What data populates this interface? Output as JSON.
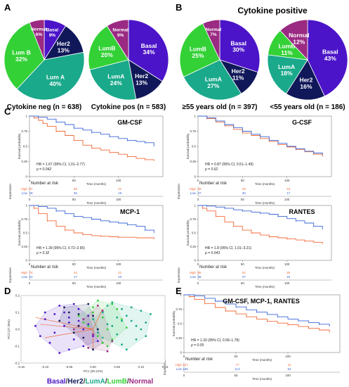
{
  "colors": {
    "basal": "#4b14c8",
    "her2": "#101859",
    "luma": "#1aa98b",
    "lumb": "#33d136",
    "normal": "#9a2a82",
    "km_high": "#f26b3a",
    "km_low": "#3a66d6"
  },
  "panels": {
    "a": "A",
    "b": "B",
    "c": "C",
    "d": "D",
    "e": "E"
  },
  "section_b_title": "Cytokine positive",
  "chart_data": [
    {
      "type": "pie",
      "id": "pie-cytokine-neg",
      "caption": "Cytokine neg (n = 638)",
      "slices": [
        {
          "key": "basal",
          "label": "Basal",
          "value": 9
        },
        {
          "key": "her2",
          "label": "Her2",
          "value": 13
        },
        {
          "key": "luma",
          "label": "Lum A",
          "value": 40
        },
        {
          "key": "lumb",
          "label": "Lum B",
          "value": 32
        },
        {
          "key": "normal",
          "label": "Normal",
          "value": 6
        }
      ]
    },
    {
      "type": "pie",
      "id": "pie-cytokine-pos",
      "caption": "Cytokine pos (n = 583)",
      "slices": [
        {
          "key": "basal",
          "label": "Basal",
          "value": 34
        },
        {
          "key": "her2",
          "label": "Her2",
          "value": 13
        },
        {
          "key": "luma",
          "label": "LumA",
          "value": 24
        },
        {
          "key": "lumb",
          "label": "LumB",
          "value": 20
        },
        {
          "key": "normal",
          "label": "Normal",
          "value": 9
        }
      ]
    },
    {
      "type": "pie",
      "id": "pie-age-55plus",
      "caption": "≥55 years old (n = 397)",
      "slices": [
        {
          "key": "basal",
          "label": "Basal",
          "value": 30
        },
        {
          "key": "her2",
          "label": "Her2",
          "value": 11
        },
        {
          "key": "luma",
          "label": "LumA",
          "value": 27
        },
        {
          "key": "lumb",
          "label": "LumB",
          "value": 25
        },
        {
          "key": "normal",
          "label": "Normal",
          "value": 7
        }
      ]
    },
    {
      "type": "pie",
      "id": "pie-age-under55",
      "caption": "<55 years old (n = 186)",
      "slices": [
        {
          "key": "basal",
          "label": "Basal",
          "value": 43
        },
        {
          "key": "her2",
          "label": "Her2",
          "value": 16
        },
        {
          "key": "luma",
          "label": "LumA",
          "value": 18
        },
        {
          "key": "lumb",
          "label": "LumB",
          "value": 11
        },
        {
          "key": "normal",
          "label": "Normal",
          "value": 12
        }
      ]
    },
    {
      "type": "line",
      "id": "km-gmcsf",
      "title": "GM-CSF",
      "ylabel": "Survival probability",
      "xlabel": "Time (months)",
      "xlim": [
        0,
        150
      ],
      "ylim": [
        0,
        1
      ],
      "xticks": [
        0,
        50,
        100
      ],
      "yticks": [
        0,
        0.25,
        0.5,
        0.75,
        1
      ],
      "hr_text": "HR = 1.67 (95% CI, 1.01–2.77)",
      "p_text": "p = 0.042",
      "risk_title": "Number at risk",
      "risk_axis_label": "Expression",
      "risk": {
        "High": [
          "87",
          "56",
          "21"
        ],
        "Low": [
          "49",
          "36",
          "19"
        ]
      },
      "series": [
        {
          "name": "High",
          "x": [
            0,
            5,
            10,
            15,
            20,
            30,
            40,
            50,
            60,
            70,
            80,
            90,
            100,
            110,
            120,
            130,
            140
          ],
          "y": [
            1,
            0.97,
            0.93,
            0.88,
            0.83,
            0.75,
            0.68,
            0.6,
            0.52,
            0.47,
            0.44,
            0.4,
            0.37,
            0.33,
            0.3,
            0.28,
            0.26
          ]
        },
        {
          "name": "Low",
          "x": [
            0,
            10,
            20,
            30,
            40,
            50,
            60,
            70,
            80,
            90,
            100,
            110,
            120,
            130,
            140
          ],
          "y": [
            1,
            0.98,
            0.95,
            0.9,
            0.86,
            0.8,
            0.77,
            0.73,
            0.7,
            0.66,
            0.63,
            0.6,
            0.58,
            0.56,
            0.5
          ]
        }
      ]
    },
    {
      "type": "line",
      "id": "km-gcsf",
      "title": "G-CSF",
      "ylabel": "Survival probability",
      "xlabel": "Time (months)",
      "xlim": [
        0,
        150
      ],
      "ylim": [
        0,
        1
      ],
      "xticks": [
        0,
        50,
        100
      ],
      "yticks": [
        0,
        0.25,
        0.5,
        0.75,
        1
      ],
      "hr_text": "HR = 0.87 (95% CI, 0.51–1.49)",
      "p_text": "p = 0.62",
      "risk_title": "Number at risk",
      "risk_axis_label": "Expression",
      "risk": {
        "High": [
          "46",
          "32",
          "15"
        ],
        "Low": [
          "47",
          "30",
          "17"
        ]
      },
      "series": [
        {
          "name": "High",
          "x": [
            0,
            10,
            20,
            30,
            40,
            50,
            60,
            70,
            80,
            90,
            100,
            110,
            120,
            130,
            140
          ],
          "y": [
            1,
            0.96,
            0.9,
            0.84,
            0.78,
            0.72,
            0.68,
            0.63,
            0.58,
            0.53,
            0.49,
            0.45,
            0.41,
            0.37,
            0.33
          ]
        },
        {
          "name": "Low",
          "x": [
            0,
            10,
            20,
            30,
            40,
            50,
            60,
            70,
            80,
            90,
            100,
            110,
            120,
            130,
            140
          ],
          "y": [
            1,
            0.97,
            0.92,
            0.86,
            0.81,
            0.75,
            0.7,
            0.66,
            0.6,
            0.55,
            0.5,
            0.46,
            0.42,
            0.39,
            0.36
          ]
        }
      ]
    },
    {
      "type": "line",
      "id": "km-mcp1",
      "title": "MCP-1",
      "ylabel": "Survival probability",
      "xlabel": "Time (months)",
      "xlim": [
        0,
        150
      ],
      "ylim": [
        0,
        1
      ],
      "xticks": [
        0,
        50,
        100
      ],
      "yticks": [
        0,
        0.25,
        0.5,
        0.75,
        1
      ],
      "hr_text": "HR = 1.39 (95% CI, 0.72–2.65)",
      "p_text": "p = 0.32",
      "risk_title": "Number at risk",
      "risk_axis_label": "Expression",
      "risk": {
        "High": [
          "74",
          "34",
          "21"
        ],
        "Low": [
          "22",
          "17",
          "10"
        ]
      },
      "series": [
        {
          "name": "High",
          "x": [
            0,
            5,
            10,
            20,
            30,
            40,
            50,
            60,
            70,
            80,
            90,
            100,
            120,
            140
          ],
          "y": [
            1,
            0.95,
            0.85,
            0.72,
            0.62,
            0.55,
            0.5,
            0.47,
            0.45,
            0.44,
            0.43,
            0.42,
            0.41,
            0.4
          ]
        },
        {
          "name": "Low",
          "x": [
            0,
            10,
            20,
            30,
            40,
            50,
            60,
            70,
            80,
            90,
            100,
            110,
            120,
            130,
            140
          ],
          "y": [
            1,
            0.98,
            0.95,
            0.9,
            0.85,
            0.8,
            0.78,
            0.75,
            0.72,
            0.7,
            0.68,
            0.65,
            0.62,
            0.55,
            0.5
          ]
        }
      ]
    },
    {
      "type": "line",
      "id": "km-rantes",
      "title": "RANTES",
      "ylabel": "Survival probability",
      "xlabel": "Time (months)",
      "xlim": [
        0,
        150
      ],
      "ylim": [
        0,
        1
      ],
      "xticks": [
        0,
        50,
        100
      ],
      "yticks": [
        0,
        0.25,
        0.5,
        0.75,
        1
      ],
      "hr_text": "HR = 1.8 (95% CI, 1.01–3.21)",
      "p_text": "p = 0.043",
      "risk_title": "Number at risk",
      "risk_axis_label": "Expression",
      "risk": {
        "High": [
          "95",
          "51",
          "25"
        ],
        "Low": [
          "38",
          "27",
          "16"
        ]
      },
      "series": [
        {
          "name": "High",
          "x": [
            0,
            5,
            10,
            20,
            30,
            40,
            50,
            60,
            70,
            80,
            90,
            100,
            110,
            120,
            130,
            140
          ],
          "y": [
            1,
            0.95,
            0.9,
            0.8,
            0.7,
            0.62,
            0.55,
            0.5,
            0.46,
            0.43,
            0.41,
            0.39,
            0.37,
            0.35,
            0.33,
            0.31
          ]
        },
        {
          "name": "Low",
          "x": [
            0,
            10,
            20,
            30,
            40,
            50,
            60,
            70,
            80,
            90,
            100,
            110,
            120,
            130,
            140
          ],
          "y": [
            1,
            0.99,
            0.97,
            0.95,
            0.92,
            0.9,
            0.88,
            0.86,
            0.84,
            0.8,
            0.76,
            0.72,
            0.68,
            0.62,
            0.56
          ]
        }
      ]
    },
    {
      "type": "scatter",
      "id": "pca",
      "xlabel": "PC1 (38.12%)",
      "ylabel": "PC2 (27.26%)",
      "xlim": [
        -0.15,
        0.15
      ],
      "ylim": [
        -0.2,
        0.2
      ],
      "xticks": [
        "-0.15",
        "-0.10",
        "-0.05",
        "0.00",
        "0.05",
        "0.10",
        "0.15"
      ],
      "yticks": [
        "0.2",
        "0.1",
        "0.0",
        "-0.1",
        "-0.2"
      ],
      "legend": [
        {
          "key": "basal",
          "label": "Basal"
        },
        {
          "key": "her2",
          "label": "Her2"
        },
        {
          "key": "luma",
          "label": "LumA"
        },
        {
          "key": "lumb",
          "label": "LumB"
        },
        {
          "key": "normal",
          "label": "Normal"
        }
      ],
      "series": [
        {
          "name": "Basal",
          "x": [
            -0.12,
            -0.1,
            -0.08,
            -0.06,
            -0.05,
            -0.04,
            -0.03,
            -0.02,
            -0.01,
            0.0,
            -0.09,
            -0.07,
            -0.05,
            -0.03,
            -0.11,
            -0.06,
            -0.02,
            -0.08,
            -0.04,
            -0.01,
            0.01,
            -0.07,
            -0.05,
            -0.1
          ],
          "y": [
            0.02,
            0.06,
            -0.02,
            0.1,
            0.04,
            -0.06,
            0.12,
            0.0,
            0.08,
            -0.04,
            -0.08,
            0.14,
            -0.12,
            0.05,
            -0.04,
            0.02,
            -0.1,
            0.09,
            0.15,
            0.03,
            -0.07,
            -0.14,
            0.07,
            0.1
          ]
        },
        {
          "name": "Her2",
          "x": [
            -0.07,
            -0.05,
            -0.03,
            -0.02,
            0.0,
            0.01,
            -0.04,
            -0.06,
            0.02,
            -0.01,
            -0.03,
            0.0
          ],
          "y": [
            0.05,
            0.1,
            0.02,
            -0.05,
            0.08,
            0.0,
            -0.02,
            0.13,
            -0.08,
            0.15,
            0.09,
            -0.12
          ]
        },
        {
          "name": "LumA",
          "x": [
            0.0,
            0.02,
            0.04,
            0.06,
            0.08,
            0.1,
            0.05,
            0.07,
            0.03,
            0.09,
            0.11,
            0.12,
            0.01,
            0.06,
            0.08,
            0.04,
            0.02,
            0.1,
            0.07,
            0.05,
            0.03,
            0.09,
            0.06,
            0.11
          ],
          "y": [
            0.06,
            0.1,
            0.02,
            0.12,
            0.05,
            0.0,
            -0.03,
            0.08,
            0.14,
            -0.06,
            0.04,
            0.09,
            -0.02,
            -0.09,
            0.13,
            0.16,
            -0.05,
            0.11,
            -0.12,
            0.07,
            0.03,
            0.02,
            0.05,
            -0.04
          ]
        },
        {
          "name": "LumB",
          "x": [
            -0.02,
            0.0,
            0.02,
            0.03,
            0.05,
            0.01,
            0.04,
            -0.01,
            0.06,
            0.02,
            0.0,
            0.03,
            0.07,
            -0.03,
            0.04,
            0.01
          ],
          "y": [
            0.04,
            0.1,
            0.07,
            0.0,
            0.12,
            -0.04,
            0.15,
            0.02,
            0.06,
            -0.08,
            0.13,
            -0.1,
            0.01,
            0.08,
            -0.06,
            0.17
          ]
        },
        {
          "name": "Normal",
          "x": [
            -0.04,
            -0.02,
            0.0,
            0.02,
            0.04,
            -0.01,
            0.01,
            0.03
          ],
          "y": [
            0.0,
            0.06,
            -0.03,
            0.11,
            -0.07,
            -0.11,
            0.14,
            -0.13
          ]
        }
      ]
    },
    {
      "type": "line",
      "id": "km-combined",
      "title": "GM-CSF, MCP-1, RANTES",
      "ylabel": "Survival probability",
      "xlabel": "Time (months)",
      "xlim": [
        0,
        150
      ],
      "ylim": [
        0,
        1
      ],
      "xticks": [
        0,
        50,
        100
      ],
      "yticks": [
        0,
        0.25,
        0.5,
        0.75,
        1
      ],
      "hr_text": "HR = 1.33 (95% CI, 0.99–1.78)",
      "p_text": "p = 0.05",
      "risk_title": "Number at risk",
      "risk_axis_label": "Expression",
      "risk": {
        "High": [
          "127",
          "77",
          "41"
        ],
        "Low": [
          "155",
          "113",
          "62"
        ]
      },
      "series": [
        {
          "name": "High",
          "x": [
            0,
            5,
            10,
            20,
            30,
            40,
            50,
            60,
            70,
            80,
            90,
            100,
            110,
            120,
            130,
            140
          ],
          "y": [
            1,
            0.97,
            0.92,
            0.85,
            0.78,
            0.72,
            0.67,
            0.62,
            0.58,
            0.54,
            0.51,
            0.48,
            0.45,
            0.42,
            0.39,
            0.36
          ]
        },
        {
          "name": "Low",
          "x": [
            0,
            10,
            20,
            30,
            40,
            50,
            60,
            70,
            80,
            90,
            100,
            110,
            120,
            130,
            140
          ],
          "y": [
            1,
            0.98,
            0.94,
            0.89,
            0.84,
            0.79,
            0.74,
            0.7,
            0.66,
            0.62,
            0.58,
            0.55,
            0.52,
            0.49,
            0.45
          ]
        }
      ]
    }
  ]
}
